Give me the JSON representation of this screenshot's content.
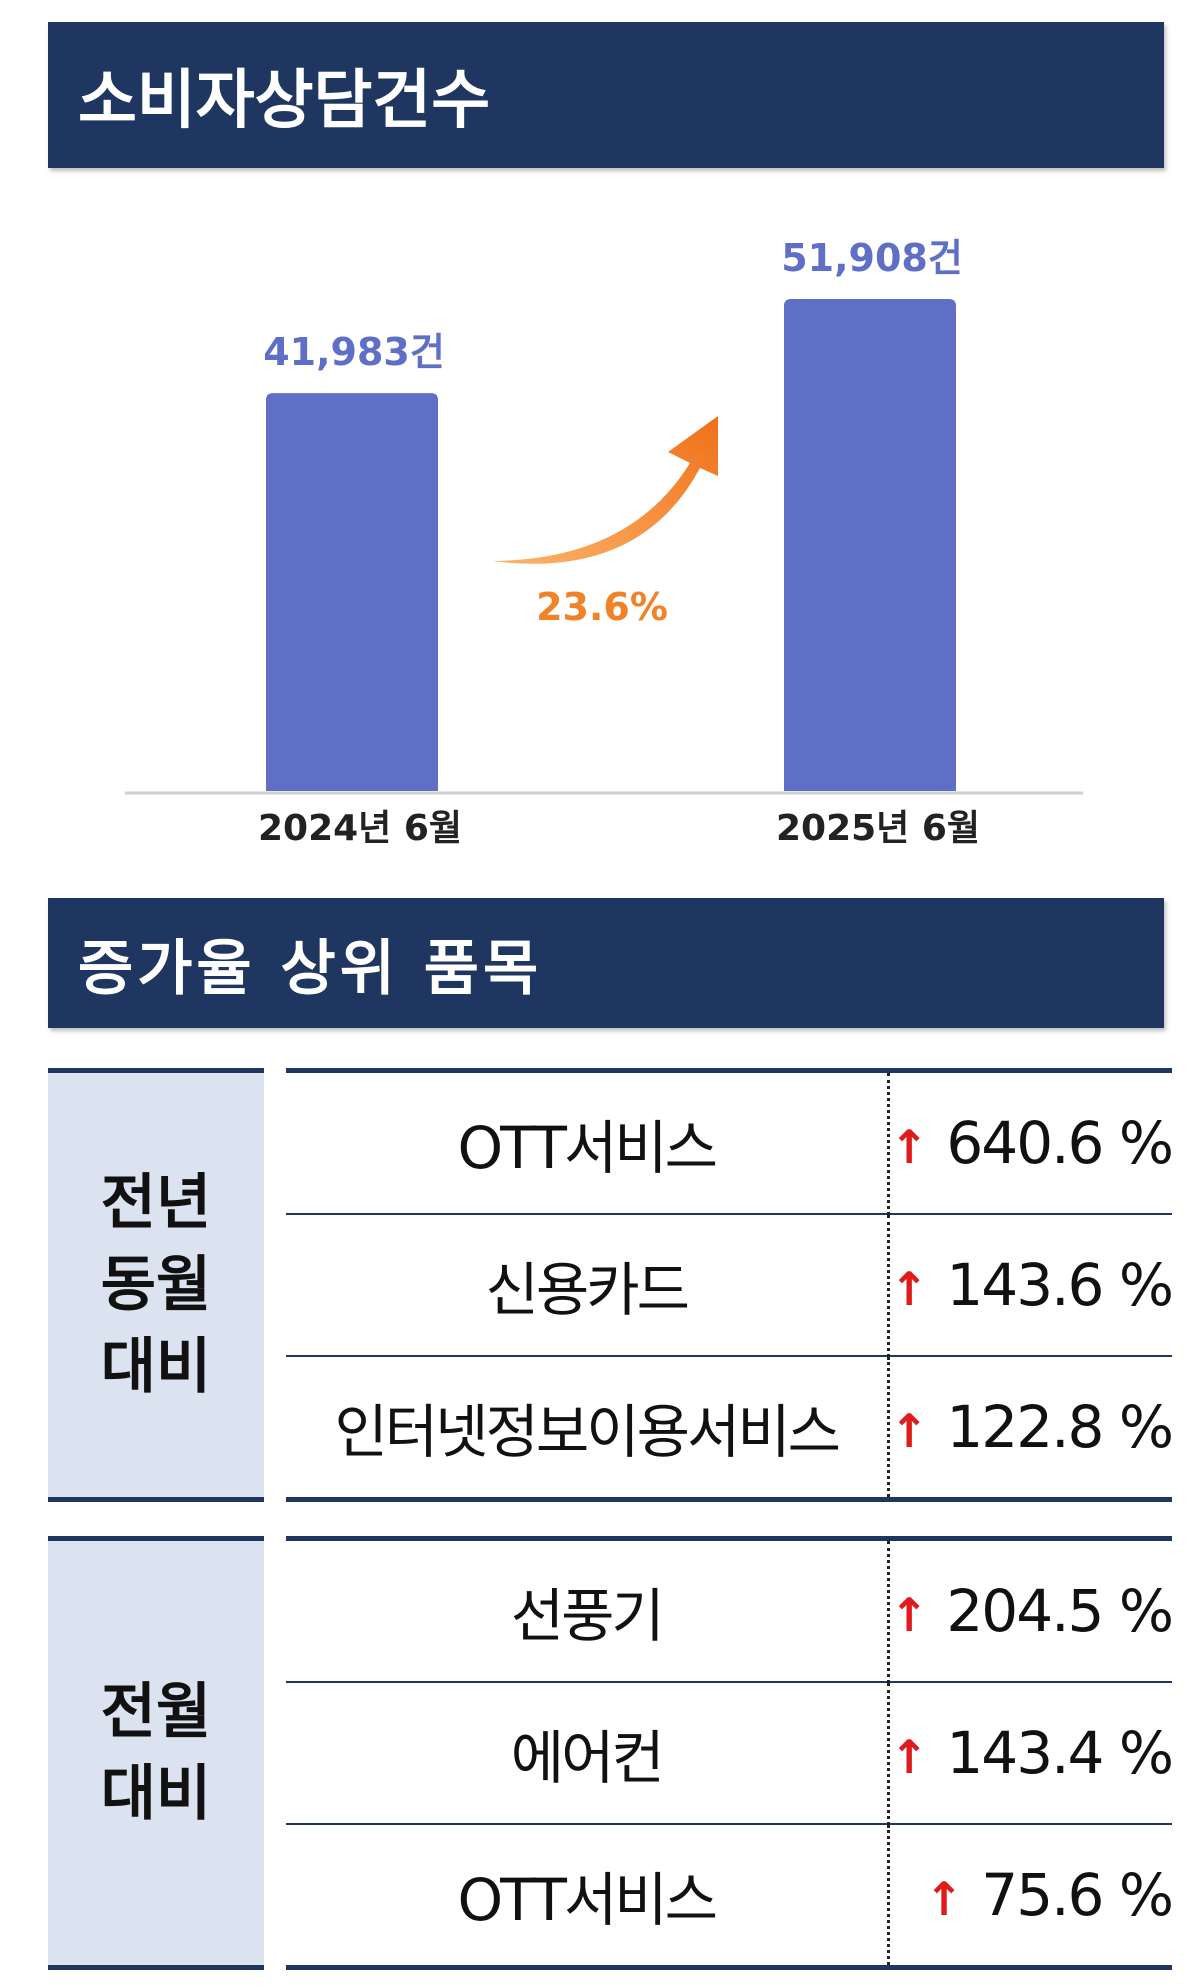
{
  "section1": {
    "title": "소비자상담건수"
  },
  "section2": {
    "title": "증가율 상위 품목"
  },
  "chart_data": {
    "type": "bar",
    "categories": [
      "2024년 6월",
      "2025년 6월"
    ],
    "values": [
      41983,
      51908
    ],
    "value_labels": [
      "41,983건",
      "51,908건"
    ],
    "change_label": "23.6%",
    "title": "소비자상담건수",
    "colors": {
      "bar": "#5f6fc6",
      "label": "#5f6fc6",
      "arrow": "#f28227"
    }
  },
  "ranking": {
    "groups": [
      {
        "label": "전년동월대비",
        "items": [
          {
            "name": "OTT서비스",
            "rate": "640.6 %"
          },
          {
            "name": "신용카드",
            "rate": "143.6 %"
          },
          {
            "name": "인터넷정보이용서비스",
            "rate": "122.8 %"
          }
        ]
      },
      {
        "label": "전월대비",
        "items": [
          {
            "name": "선풍기",
            "rate": "204.5 %"
          },
          {
            "name": "에어컨",
            "rate": "143.4 %"
          },
          {
            "name": "OTT서비스",
            "rate": "75.6 %"
          }
        ]
      }
    ],
    "arrow_icon": "arrow-up-icon",
    "colors": {
      "header": "#1f3760",
      "group_bg": "#dbe3f0",
      "arrow": "#e01b1b"
    }
  }
}
